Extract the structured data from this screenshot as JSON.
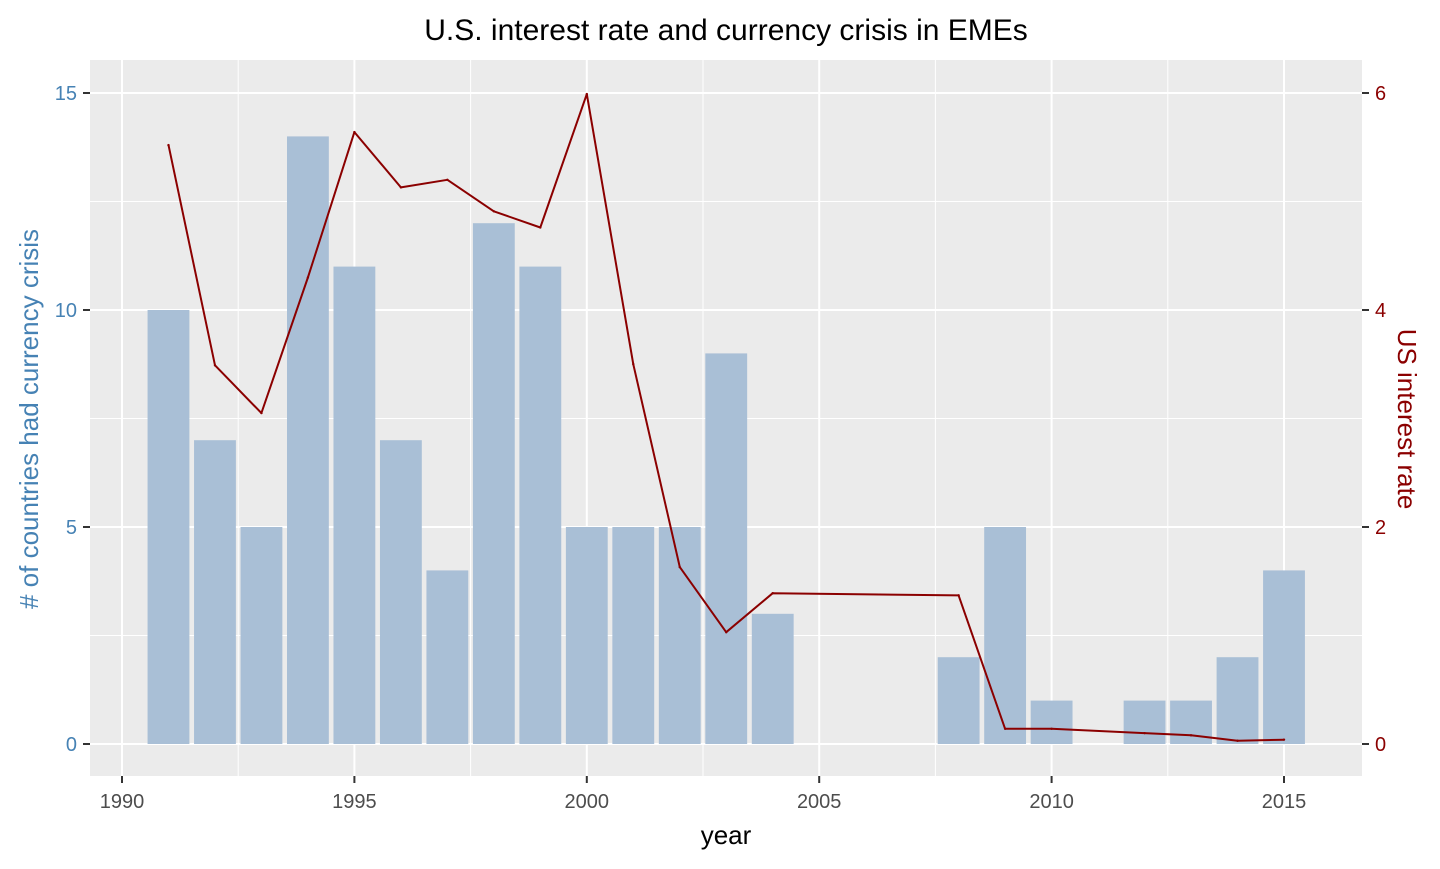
{
  "chart_data": {
    "type": "bar+line",
    "title": "U.S. interest rate and currency crisis in EMEs",
    "xlabel": "year",
    "ylabel_left": "# of countries had currency crisis",
    "ylabel_right": "US interest rate",
    "xlim": [
      1990,
      2015
    ],
    "x_ticks": [
      1990,
      1995,
      2000,
      2005,
      2010,
      2015
    ],
    "ylim_left": [
      0,
      15
    ],
    "y_ticks_left": [
      0,
      5,
      10,
      15
    ],
    "ylim_right": [
      0,
      6
    ],
    "y_ticks_right": [
      0,
      2,
      4,
      6
    ],
    "grid": true,
    "colors": {
      "panel": "#EBEBEB",
      "grid": "#FFFFFF",
      "bar": "#A9BFD6",
      "line": "#8B0000",
      "left_axis": "#4682B4",
      "right_axis": "#8B0000",
      "x_axis": "#4D4D4D"
    },
    "series": [
      {
        "name": "# of countries had currency crisis",
        "type": "bar",
        "axis": "left",
        "x": [
          1991,
          1992,
          1993,
          1994,
          1995,
          1996,
          1997,
          1998,
          1999,
          2000,
          2001,
          2002,
          2003,
          2004,
          2008,
          2009,
          2010,
          2012,
          2013,
          2014,
          2015
        ],
        "values": [
          10,
          7,
          5,
          14,
          11,
          7,
          4,
          12,
          11,
          5,
          5,
          5,
          9,
          3,
          2,
          5,
          1,
          1,
          1,
          2,
          4
        ]
      },
      {
        "name": "US interest rate",
        "type": "line",
        "axis": "right",
        "x": [
          1991,
          1992,
          1993,
          1994,
          1995,
          1996,
          1997,
          1998,
          1999,
          2000,
          2001,
          2002,
          2003,
          2004,
          2008,
          2009,
          2010,
          2012,
          2013,
          2014,
          2015
        ],
        "values": [
          5.52,
          3.49,
          3.05,
          4.3,
          5.64,
          5.13,
          5.2,
          4.91,
          4.76,
          5.99,
          3.5,
          1.63,
          1.03,
          1.39,
          1.37,
          0.14,
          0.14,
          0.1,
          0.08,
          0.03,
          0.04
        ]
      }
    ]
  }
}
